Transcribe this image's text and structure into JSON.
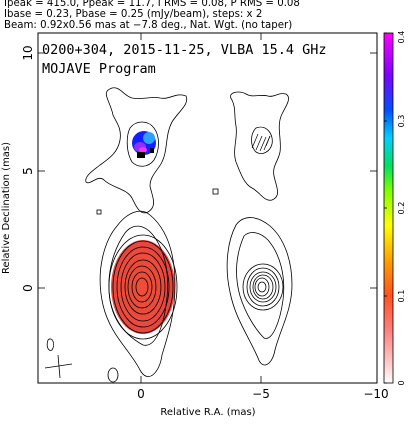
{
  "header": {
    "line1": "Ipeak = 415.0, Ppeak = 11.7, I RMS = 0.08, P RMS = 0.08",
    "line2": "Ibase = 0.23, Pbase = 0.25 (mJy/beam), steps: x 2",
    "line3": "Beam: 0.92x0.56 mas at −7.8 deg., Nat. Wgt. (no taper)"
  },
  "plot": {
    "title_line1": "0200+304, 2015-11-25, VLBA 15.4 GHz",
    "title_line2": "MOJAVE Program",
    "xlabel": "Relative R.A. (mas)",
    "ylabel": "Relative Declination (mas)",
    "x_ticks": [
      "0",
      "−5",
      "−10"
    ],
    "y_ticks": [
      "0",
      "5",
      "10"
    ],
    "colorbar_ticks": [
      "0",
      "0.1",
      "0.2",
      "0.3",
      "0.4"
    ]
  },
  "colors": {
    "hot_red": "#e03030",
    "contour": "#000000"
  }
}
